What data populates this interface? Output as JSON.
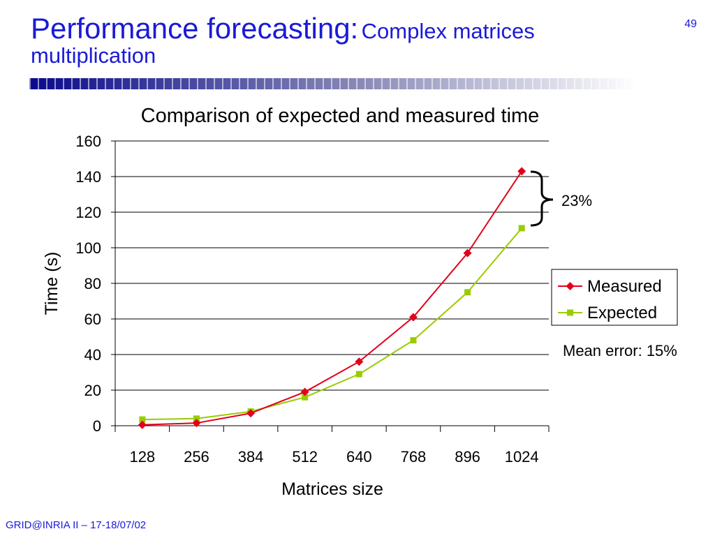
{
  "slide": {
    "title_main": "Performance forecasting:",
    "title_sub_1": "Complex matrices",
    "title_sub_2": "multiplication",
    "number": "49",
    "footer": "GRID@INRIA II  – 17-18/07/02",
    "accent_color": "#1a1ad6",
    "bar_color_dark": "#0a0a8c"
  },
  "chart_data": {
    "type": "line",
    "title": "Comparison of expected and measured time",
    "xlabel": "Matrices size",
    "ylabel": "Time (s)",
    "categories": [
      "128",
      "256",
      "384",
      "512",
      "640",
      "768",
      "896",
      "1024"
    ],
    "ylim": [
      0,
      160
    ],
    "yticks": [
      0,
      20,
      40,
      60,
      80,
      100,
      120,
      140,
      160
    ],
    "grid": true,
    "legend_position": "right",
    "series": [
      {
        "name": "Measured",
        "color": "#e3001b",
        "marker": "diamond",
        "values": [
          0.5,
          1.5,
          7,
          19,
          36,
          61,
          97,
          143
        ]
      },
      {
        "name": "Expected",
        "color": "#99cc00",
        "marker": "square",
        "values": [
          3.5,
          4,
          8,
          16,
          29,
          48,
          75,
          111
        ]
      }
    ],
    "annotations": {
      "brace_label": "23%",
      "mean_error": "Mean error: 15%"
    }
  }
}
